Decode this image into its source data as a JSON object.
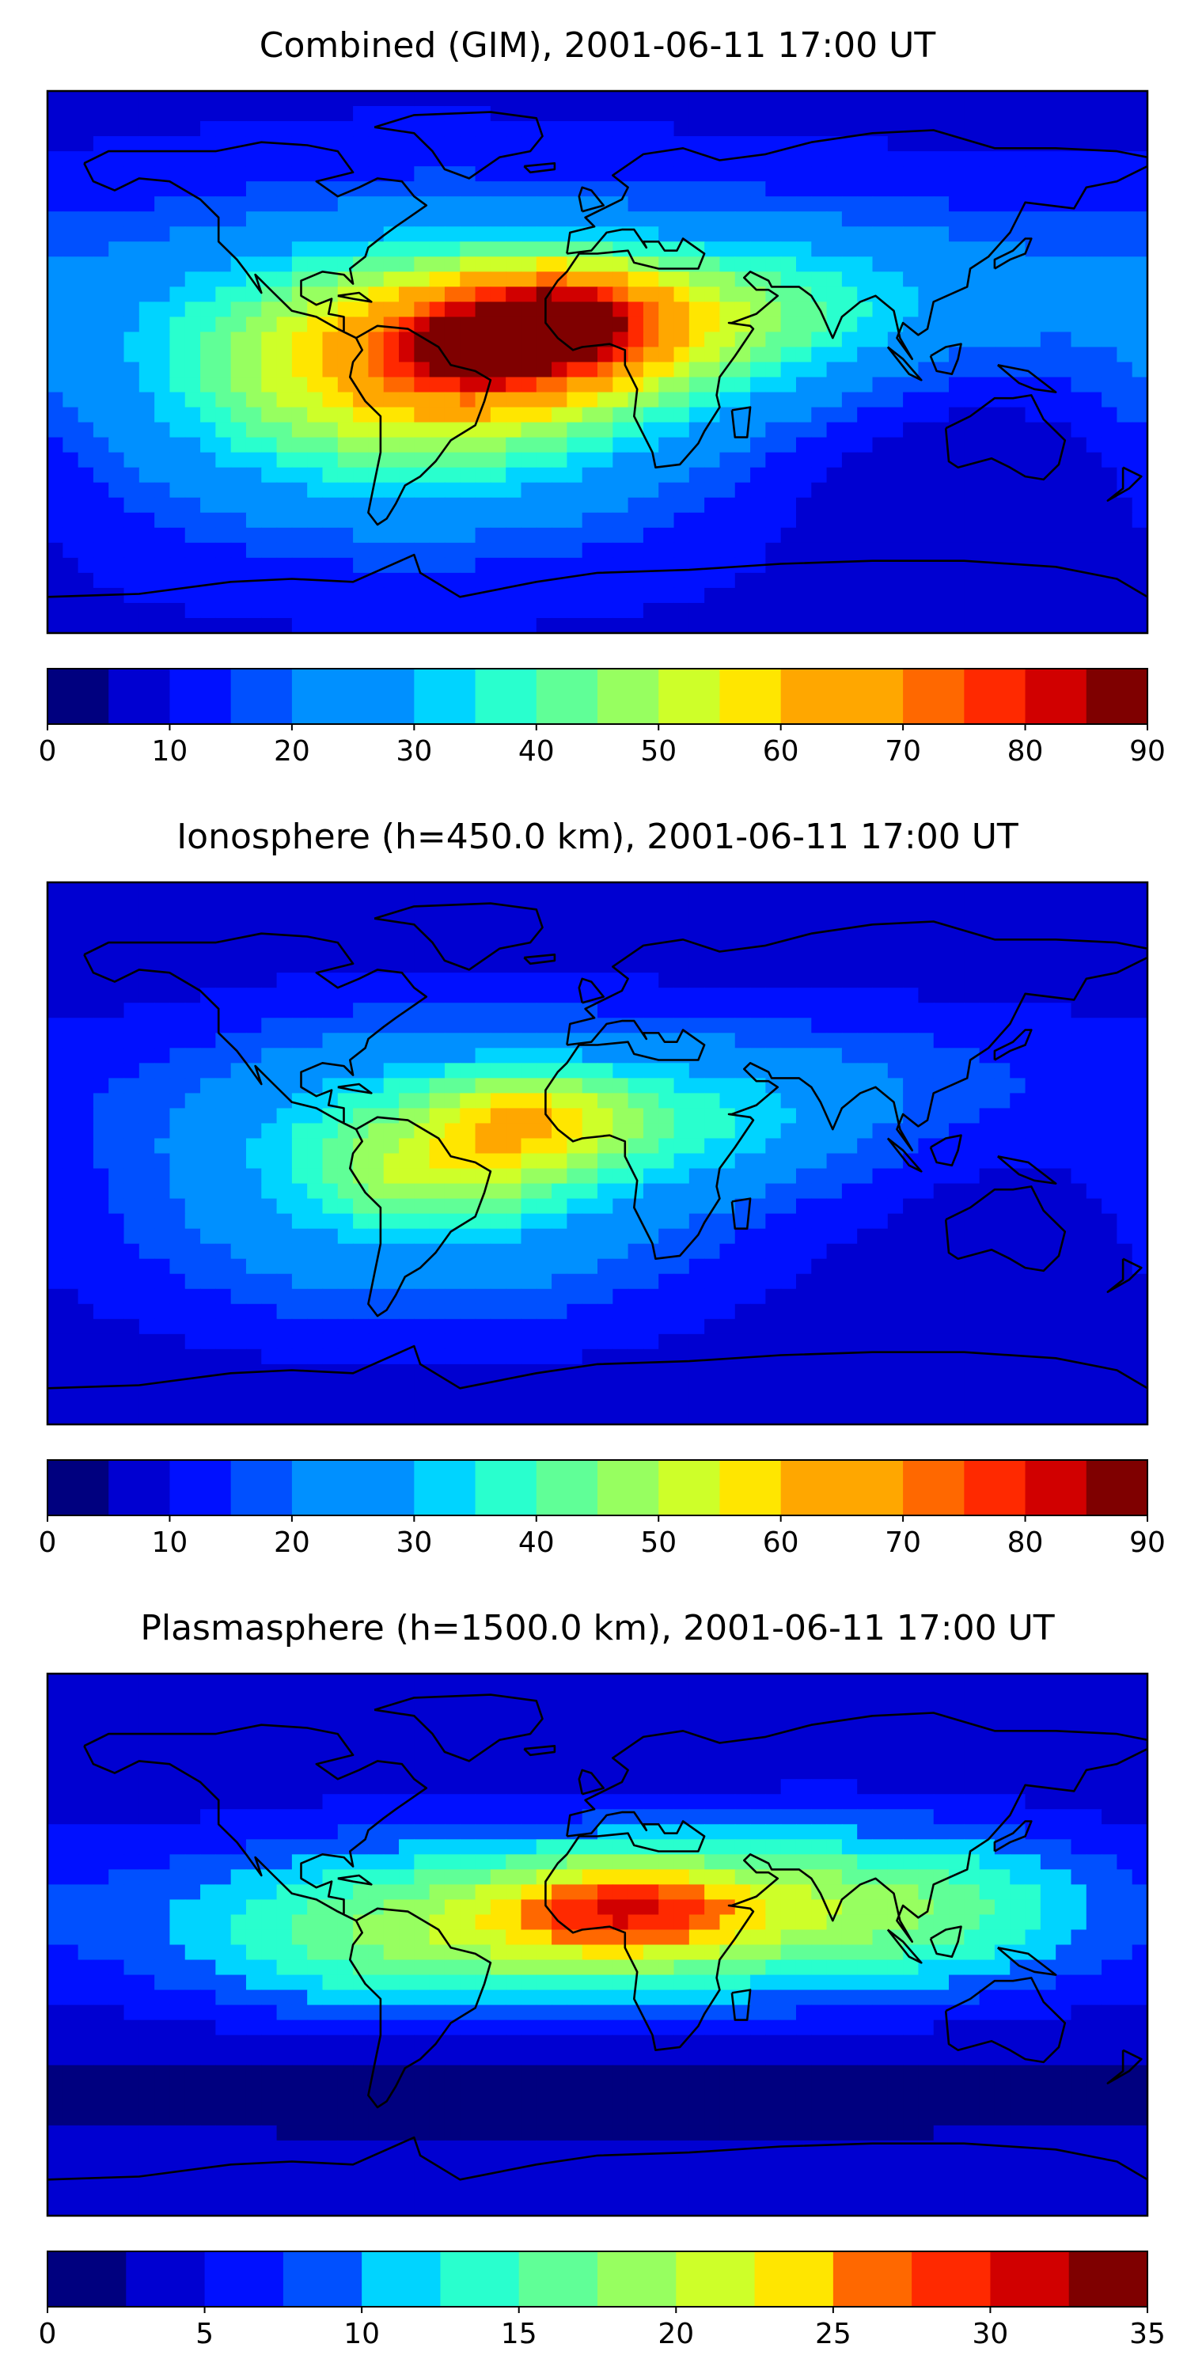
{
  "panels": [
    {
      "title": "Combined (GIM), 2001-06-11 17:00 UT",
      "colorbar": {
        "min": 0,
        "max": 90,
        "step": 5,
        "ticks": [
          "0",
          "10",
          "20",
          "30",
          "40",
          "50",
          "60",
          "70",
          "80",
          "90"
        ]
      },
      "field": {
        "base": 9,
        "blobs": [
          {
            "lon": -60,
            "lat": 5,
            "slon": 65,
            "slat": 28,
            "amp": 48
          },
          {
            "lon": -25,
            "lat": 10,
            "slon": 30,
            "slat": 15,
            "amp": 22
          },
          {
            "lon": -10,
            "lat": 15,
            "slon": 22,
            "slat": 12,
            "amp": 22
          },
          {
            "lon": -45,
            "lat": 2,
            "slon": 20,
            "slat": 10,
            "amp": 12
          },
          {
            "lon": 40,
            "lat": 15,
            "slon": 45,
            "slat": 20,
            "amp": 22
          },
          {
            "lon": 110,
            "lat": 25,
            "slon": 60,
            "slat": 20,
            "amp": 12
          },
          {
            "lon": -60,
            "lat": -30,
            "slon": 70,
            "slat": 25,
            "amp": 14
          },
          {
            "lon": 120,
            "lat": -35,
            "slon": 55,
            "slat": 20,
            "amp": -5
          }
        ]
      }
    },
    {
      "title": "Ionosphere  (h=450.0 km), 2001-06-11 17:00 UT",
      "colorbar": {
        "min": 0,
        "max": 90,
        "step": 5,
        "ticks": [
          "0",
          "10",
          "20",
          "30",
          "40",
          "50",
          "60",
          "70",
          "80",
          "90"
        ]
      },
      "field": {
        "base": 7,
        "blobs": [
          {
            "lon": -55,
            "lat": 5,
            "slon": 60,
            "slat": 26,
            "amp": 33
          },
          {
            "lon": -22,
            "lat": 12,
            "slon": 22,
            "slat": 12,
            "amp": 20
          },
          {
            "lon": -55,
            "lat": -8,
            "slon": 25,
            "slat": 12,
            "amp": 10
          },
          {
            "lon": 38,
            "lat": 12,
            "slon": 40,
            "slat": 18,
            "amp": 17
          },
          {
            "lon": 110,
            "lat": 25,
            "slon": 55,
            "slat": 18,
            "amp": 8
          },
          {
            "lon": -60,
            "lat": -35,
            "slon": 70,
            "slat": 22,
            "amp": 10
          }
        ]
      }
    },
    {
      "title": "Plasmasphere (h=1500.0 km), 2001-06-11 17:00 UT",
      "colorbar": {
        "min": 0,
        "max": 35,
        "step": 2.5,
        "ticks": [
          "0",
          "5",
          "10",
          "15",
          "20",
          "25",
          "30",
          "35"
        ]
      },
      "field": {
        "base": 3,
        "blobs": [
          {
            "lon": 0,
            "lat": 8,
            "slon": 110,
            "slat": 22,
            "amp": 13
          },
          {
            "lon": 10,
            "lat": 12,
            "slon": 30,
            "slat": 12,
            "amp": 13
          },
          {
            "lon": 100,
            "lat": 15,
            "slon": 45,
            "slat": 18,
            "amp": 7
          },
          {
            "lon": -65,
            "lat": 0,
            "slon": 45,
            "slat": 18,
            "amp": 5
          },
          {
            "lon": 0,
            "lat": -45,
            "slon": 160,
            "slat": 12,
            "amp": -2
          }
        ]
      }
    }
  ],
  "colors": {
    "jet": [
      "#00007f",
      "#0000d1",
      "#0010ff",
      "#0050ff",
      "#0090ff",
      "#00d4ff",
      "#29ffce",
      "#60ff97",
      "#97ff60",
      "#ceff29",
      "#ffe600",
      "#ffa700",
      "#ff6800",
      "#ff2900",
      "#d10000",
      "#7f0000"
    ],
    "coastline": "#000000",
    "frame": "#000000"
  }
}
